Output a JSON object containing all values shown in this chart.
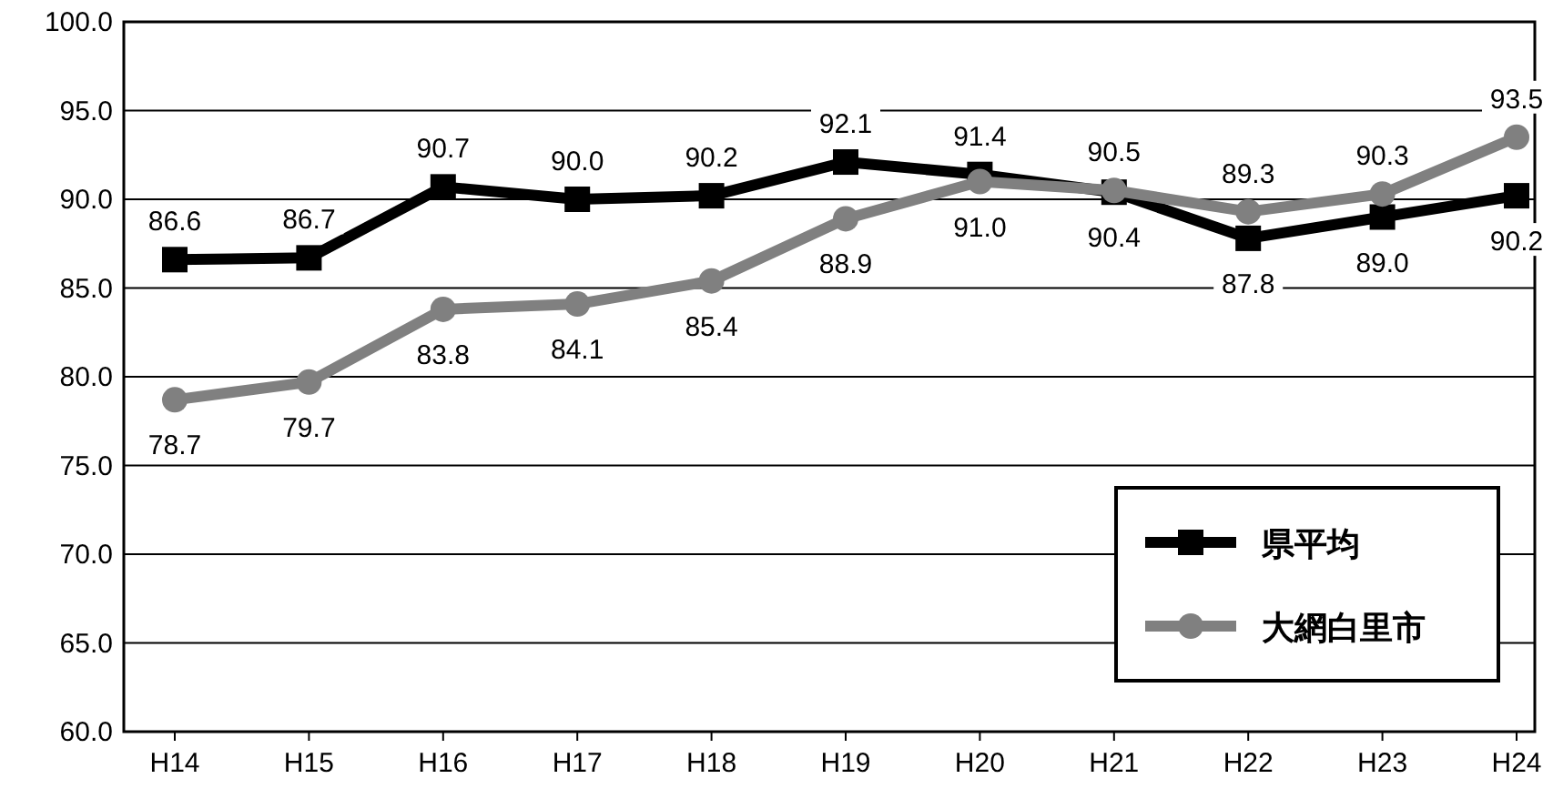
{
  "chart_data": {
    "type": "line",
    "categories": [
      "H14",
      "H15",
      "H16",
      "H17",
      "H18",
      "H19",
      "H20",
      "H21",
      "H22",
      "H23",
      "H24"
    ],
    "series": [
      {
        "name": "県平均",
        "color": "#000000",
        "marker": "square",
        "values": [
          86.6,
          86.7,
          90.7,
          90.0,
          90.2,
          92.1,
          91.4,
          90.4,
          87.8,
          89.0,
          90.2
        ],
        "value_labels": [
          "86.6",
          "86.7",
          "90.7",
          "90.0",
          "90.2",
          "92.1",
          "91.4",
          "90.4",
          "87.8",
          "89.0",
          "90.2"
        ]
      },
      {
        "name": "大網白里市",
        "color": "#808080",
        "marker": "circle",
        "values": [
          78.7,
          79.7,
          83.8,
          84.1,
          85.4,
          88.9,
          91.0,
          90.5,
          89.3,
          90.3,
          93.5
        ],
        "value_labels": [
          "78.7",
          "79.7",
          "83.8",
          "84.1",
          "85.4",
          "88.9",
          "91.0",
          "90.5",
          "89.3",
          "90.3",
          "93.5"
        ]
      }
    ],
    "ylim": [
      60,
      100
    ],
    "yticks": [
      {
        "value": 60,
        "label": "60.0"
      },
      {
        "value": 65,
        "label": "65.0"
      },
      {
        "value": 70,
        "label": "70.0"
      },
      {
        "value": 75,
        "label": "75.0"
      },
      {
        "value": 80,
        "label": "80.0"
      },
      {
        "value": 85,
        "label": "85.0"
      },
      {
        "value": 90,
        "label": "90.0"
      },
      {
        "value": 95,
        "label": "95.0"
      },
      {
        "value": 100,
        "label": "100.0"
      }
    ],
    "grid": "y",
    "legend": "bottom right",
    "line_style": "solid"
  }
}
